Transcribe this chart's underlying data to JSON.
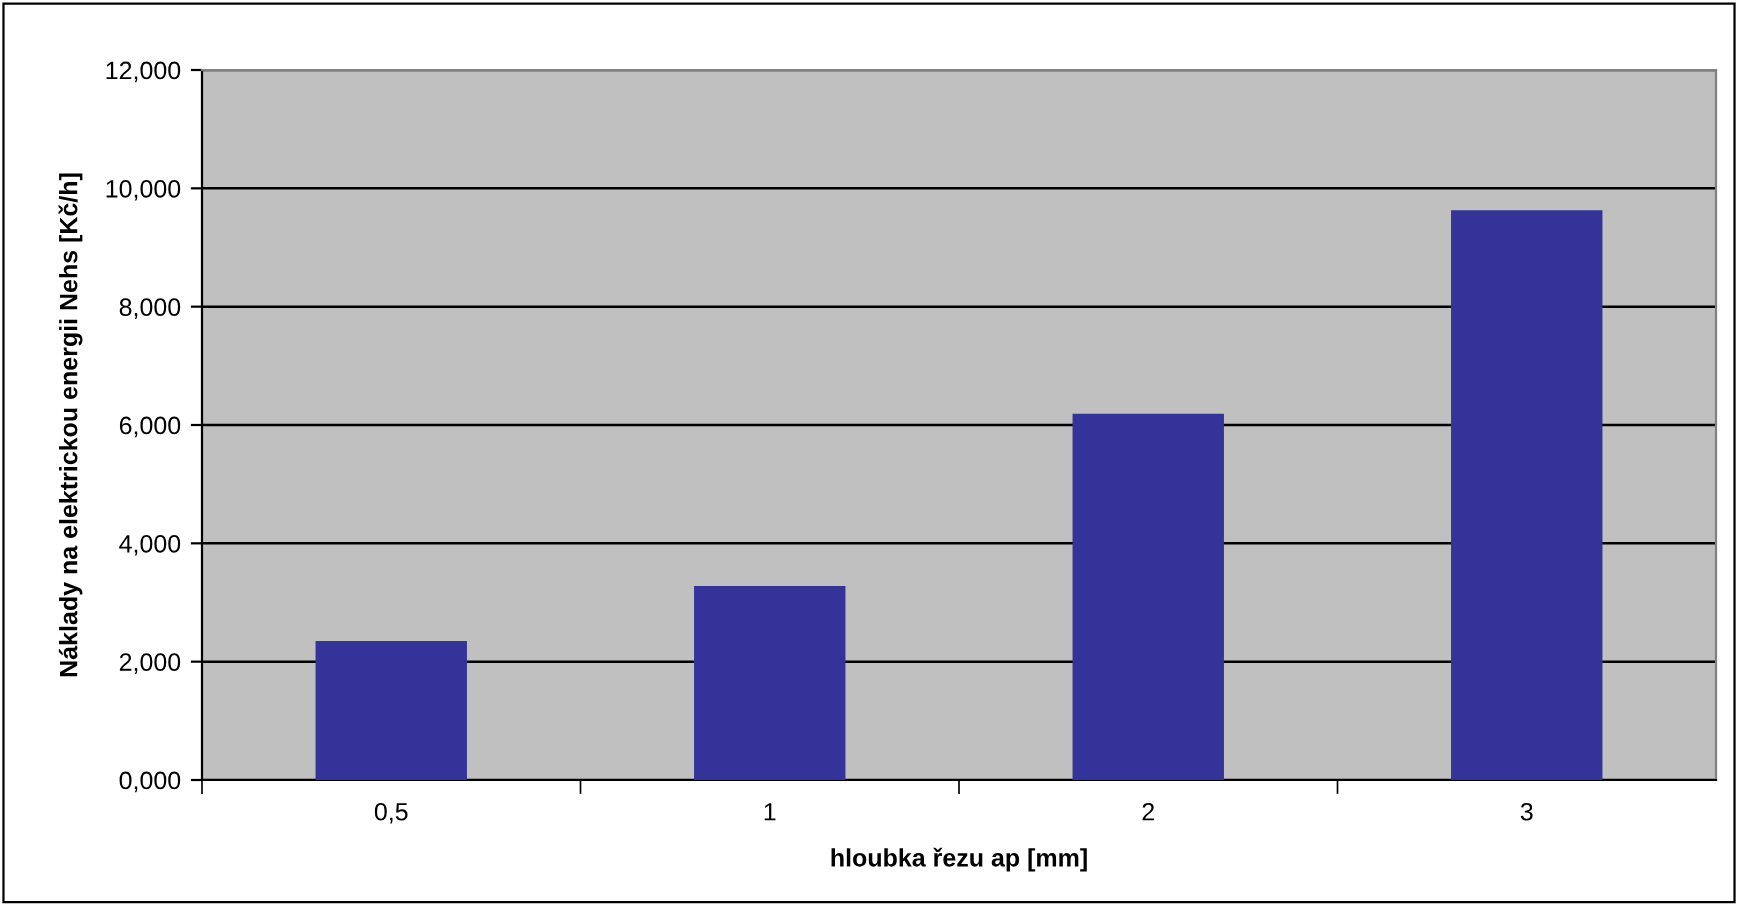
{
  "chart_data": {
    "type": "bar",
    "xlabel": "hloubka řezu ap [mm]",
    "ylabel": "Náklady na elektrickou energii Nehs [Kč/h]",
    "categories": [
      "0,5",
      "1",
      "2",
      "3"
    ],
    "values": [
      2.35,
      3.28,
      6.19,
      9.63
    ],
    "color": "#333399",
    "ylim": [
      0,
      12
    ],
    "yticks": [
      {
        "value": 0,
        "label": "0,000"
      },
      {
        "value": 2,
        "label": "2,000"
      },
      {
        "value": 4,
        "label": "4,000"
      },
      {
        "value": 6,
        "label": "6,000"
      },
      {
        "value": 8,
        "label": "8,000"
      },
      {
        "value": 10,
        "label": "10,000"
      },
      {
        "value": 12,
        "label": "12,000"
      }
    ],
    "grid": "y",
    "legend": false
  }
}
